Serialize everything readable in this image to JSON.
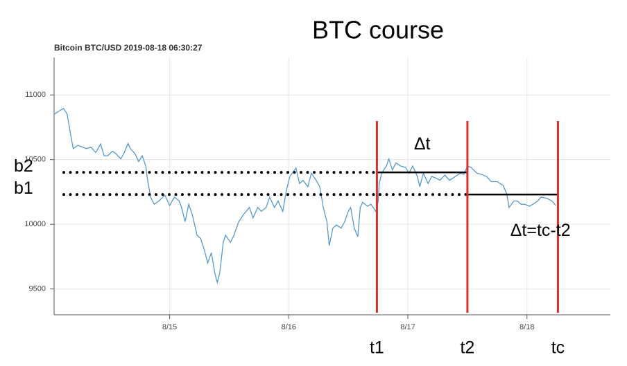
{
  "chart_data": {
    "type": "line",
    "page_title": "BTC course",
    "title": "Bitcoin BTC/USD 2019-08-18 06:30:27",
    "color": "#5599cc",
    "grid": true,
    "xlim": [
      14.03,
      18.7
    ],
    "ylim": [
      9300,
      11290
    ],
    "xticks": [
      {
        "value": 15,
        "label": "8/15"
      },
      {
        "value": 16,
        "label": "8/16"
      },
      {
        "value": 17,
        "label": "8/17"
      },
      {
        "value": 18,
        "label": "8/18"
      }
    ],
    "yticks": [
      9500,
      10000,
      10500,
      11000
    ],
    "x": [
      14.03,
      14.07,
      14.11,
      14.14,
      14.17,
      14.19,
      14.23,
      14.26,
      14.3,
      14.34,
      14.38,
      14.42,
      14.45,
      14.48,
      14.52,
      14.55,
      14.59,
      14.62,
      14.65,
      14.67,
      14.71,
      14.74,
      14.77,
      14.8,
      14.81,
      14.84,
      14.87,
      14.91,
      14.96,
      15.0,
      15.04,
      15.08,
      15.1,
      15.13,
      15.16,
      15.19,
      15.23,
      15.26,
      15.29,
      15.32,
      15.35,
      15.38,
      15.4,
      15.42,
      15.45,
      15.47,
      15.51,
      15.54,
      15.58,
      15.62,
      15.67,
      15.7,
      15.74,
      15.77,
      15.81,
      15.84,
      15.88,
      15.91,
      15.95,
      15.98,
      16.01,
      16.03,
      16.06,
      16.09,
      16.12,
      16.16,
      16.19,
      16.23,
      16.26,
      16.29,
      16.32,
      16.34,
      16.37,
      16.4,
      16.44,
      16.47,
      16.5,
      16.52,
      16.55,
      16.58,
      16.6,
      16.62,
      16.66,
      16.69,
      16.73,
      16.75,
      16.76,
      16.78,
      16.82,
      16.84,
      16.87,
      16.9,
      16.94,
      16.98,
      17.01,
      17.04,
      17.08,
      17.1,
      17.13,
      17.17,
      17.2,
      17.24,
      17.27,
      17.31,
      17.35,
      17.4,
      17.44,
      17.47,
      17.5,
      17.53,
      17.58,
      17.62,
      17.66,
      17.7,
      17.75,
      17.8,
      17.83,
      17.85,
      17.89,
      17.92,
      17.95,
      17.98,
      18.02,
      18.05,
      18.09,
      18.12,
      18.17,
      18.21,
      18.24
    ],
    "values": [
      10850,
      10875,
      10895,
      10850,
      10690,
      10585,
      10610,
      10600,
      10585,
      10595,
      10555,
      10620,
      10530,
      10530,
      10565,
      10545,
      10505,
      10555,
      10625,
      10585,
      10545,
      10485,
      10530,
      10450,
      10370,
      10210,
      10155,
      10180,
      10225,
      10145,
      10210,
      10180,
      10130,
      10020,
      10155,
      10075,
      9915,
      9890,
      9805,
      9700,
      9780,
      9620,
      9550,
      9620,
      9860,
      9915,
      9860,
      9915,
      10020,
      10075,
      10130,
      10050,
      10130,
      10100,
      10130,
      10210,
      10130,
      10180,
      10100,
      10260,
      10370,
      10395,
      10435,
      10315,
      10340,
      10290,
      10395,
      10340,
      10290,
      10130,
      10020,
      9835,
      9970,
      9995,
      9970,
      10020,
      10100,
      10130,
      9970,
      9905,
      10130,
      10170,
      10140,
      10155,
      10100,
      10170,
      10315,
      10395,
      10450,
      10505,
      10420,
      10475,
      10450,
      10440,
      10395,
      10450,
      10370,
      10290,
      10395,
      10315,
      10370,
      10355,
      10340,
      10380,
      10340,
      10370,
      10395,
      10385,
      10450,
      10440,
      10395,
      10385,
      10370,
      10330,
      10330,
      10300,
      10235,
      10130,
      10180,
      10180,
      10155,
      10155,
      10140,
      10155,
      10180,
      10210,
      10200,
      10180,
      10145
    ],
    "levels": [
      {
        "label": "b2",
        "y": 10401
      },
      {
        "label": "b1",
        "y": 10230
      }
    ],
    "times": [
      {
        "label": "t1",
        "x": 16.74
      },
      {
        "label": "t2",
        "x": 17.5
      },
      {
        "label": "tc",
        "x": 18.26
      }
    ],
    "intervals": [
      "Δt",
      "Δt=tc-t2"
    ]
  }
}
